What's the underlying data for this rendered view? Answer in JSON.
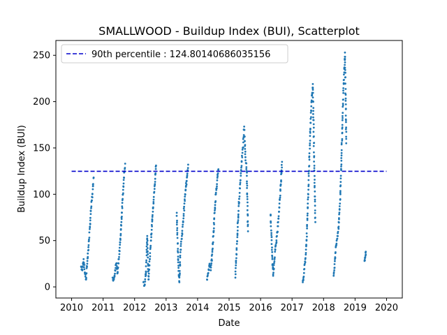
{
  "chart_data": {
    "type": "scatter",
    "title": "SMALLWOOD - Buildup Index (BUI), Scatterplot",
    "xlabel": "Date",
    "ylabel": "Buildup Index (BUI)",
    "xlim": [
      2009.5,
      2020.5
    ],
    "ylim": [
      -12,
      266
    ],
    "x_ticks": [
      2010,
      2011,
      2012,
      2013,
      2014,
      2015,
      2016,
      2017,
      2018,
      2019,
      2020
    ],
    "x_tick_labels": [
      "2010",
      "2011",
      "2012",
      "2013",
      "2014",
      "2015",
      "2016",
      "2017",
      "2018",
      "2019",
      "2020"
    ],
    "y_ticks": [
      0,
      50,
      100,
      150,
      200,
      250
    ],
    "y_tick_labels": [
      "0",
      "50",
      "100",
      "150",
      "200",
      "250"
    ],
    "point_color": "#1f77b4",
    "reference_line": {
      "label": "90th percentile : 124.80140686035156",
      "value": 124.80140686035156,
      "color": "#0000cc",
      "style": "dashed",
      "x_range": [
        2010,
        2020
      ]
    },
    "legend_position": "upper-left",
    "grid": false,
    "series_segments": [
      {
        "season": 2010,
        "points": [
          [
            2010.3,
            22
          ],
          [
            2010.34,
            18
          ],
          [
            2010.38,
            30
          ],
          [
            2010.42,
            15
          ],
          [
            2010.46,
            8
          ],
          [
            2010.5,
            28
          ],
          [
            2010.54,
            45
          ],
          [
            2010.58,
            65
          ],
          [
            2010.62,
            85
          ],
          [
            2010.66,
            100
          ],
          [
            2010.7,
            118
          ]
        ]
      },
      {
        "season": 2011,
        "points": [
          [
            2011.3,
            10
          ],
          [
            2011.34,
            8
          ],
          [
            2011.38,
            18
          ],
          [
            2011.42,
            25
          ],
          [
            2011.46,
            15
          ],
          [
            2011.5,
            30
          ],
          [
            2011.54,
            48
          ],
          [
            2011.58,
            70
          ],
          [
            2011.62,
            95
          ],
          [
            2011.66,
            118
          ],
          [
            2011.7,
            133
          ]
        ]
      },
      {
        "season": 2012,
        "points": [
          [
            2012.28,
            5
          ],
          [
            2012.32,
            2
          ],
          [
            2012.36,
            15
          ],
          [
            2012.4,
            55
          ],
          [
            2012.44,
            8
          ],
          [
            2012.48,
            30
          ],
          [
            2012.52,
            50
          ],
          [
            2012.56,
            72
          ],
          [
            2012.6,
            90
          ],
          [
            2012.64,
            110
          ],
          [
            2012.68,
            131
          ]
        ]
      },
      {
        "season": 2013,
        "points": [
          [
            2013.34,
            80
          ],
          [
            2013.38,
            30
          ],
          [
            2013.42,
            5
          ],
          [
            2013.46,
            40
          ],
          [
            2013.5,
            55
          ],
          [
            2013.54,
            70
          ],
          [
            2013.58,
            90
          ],
          [
            2013.62,
            105
          ],
          [
            2013.66,
            118
          ],
          [
            2013.7,
            132
          ]
        ]
      },
      {
        "season": 2014,
        "points": [
          [
            2014.3,
            8
          ],
          [
            2014.34,
            15
          ],
          [
            2014.38,
            25
          ],
          [
            2014.42,
            18
          ],
          [
            2014.46,
            35
          ],
          [
            2014.5,
            55
          ],
          [
            2014.54,
            80
          ],
          [
            2014.58,
            100
          ],
          [
            2014.62,
            115
          ],
          [
            2014.66,
            127
          ]
        ]
      },
      {
        "season": 2015,
        "points": [
          [
            2015.2,
            10
          ],
          [
            2015.24,
            40
          ],
          [
            2015.28,
            70
          ],
          [
            2015.32,
            95
          ],
          [
            2015.36,
            115
          ],
          [
            2015.4,
            135
          ],
          [
            2015.44,
            150
          ],
          [
            2015.48,
            173
          ],
          [
            2015.52,
            140
          ],
          [
            2015.56,
            125
          ],
          [
            2015.6,
            60
          ]
        ]
      },
      {
        "season": 2016,
        "points": [
          [
            2016.32,
            78
          ],
          [
            2016.36,
            40
          ],
          [
            2016.4,
            12
          ],
          [
            2016.44,
            30
          ],
          [
            2016.48,
            45
          ],
          [
            2016.52,
            55
          ],
          [
            2016.56,
            70
          ],
          [
            2016.6,
            90
          ],
          [
            2016.64,
            110
          ],
          [
            2016.68,
            135
          ]
        ]
      },
      {
        "season": 2017,
        "points": [
          [
            2017.34,
            5
          ],
          [
            2017.38,
            15
          ],
          [
            2017.42,
            30
          ],
          [
            2017.46,
            50
          ],
          [
            2017.5,
            90
          ],
          [
            2017.54,
            130
          ],
          [
            2017.58,
            170
          ],
          [
            2017.62,
            200
          ],
          [
            2017.66,
            219
          ],
          [
            2017.7,
            140
          ],
          [
            2017.74,
            70
          ]
        ]
      },
      {
        "season": 2018,
        "points": [
          [
            2018.32,
            12
          ],
          [
            2018.36,
            30
          ],
          [
            2018.4,
            45
          ],
          [
            2018.44,
            55
          ],
          [
            2018.48,
            65
          ],
          [
            2018.52,
            90
          ],
          [
            2018.56,
            130
          ],
          [
            2018.6,
            180
          ],
          [
            2018.64,
            220
          ],
          [
            2018.68,
            253
          ],
          [
            2018.72,
            155
          ]
        ]
      },
      {
        "season": 2019,
        "points": [
          [
            2019.3,
            28
          ],
          [
            2019.32,
            32
          ],
          [
            2019.34,
            38
          ]
        ]
      }
    ]
  }
}
